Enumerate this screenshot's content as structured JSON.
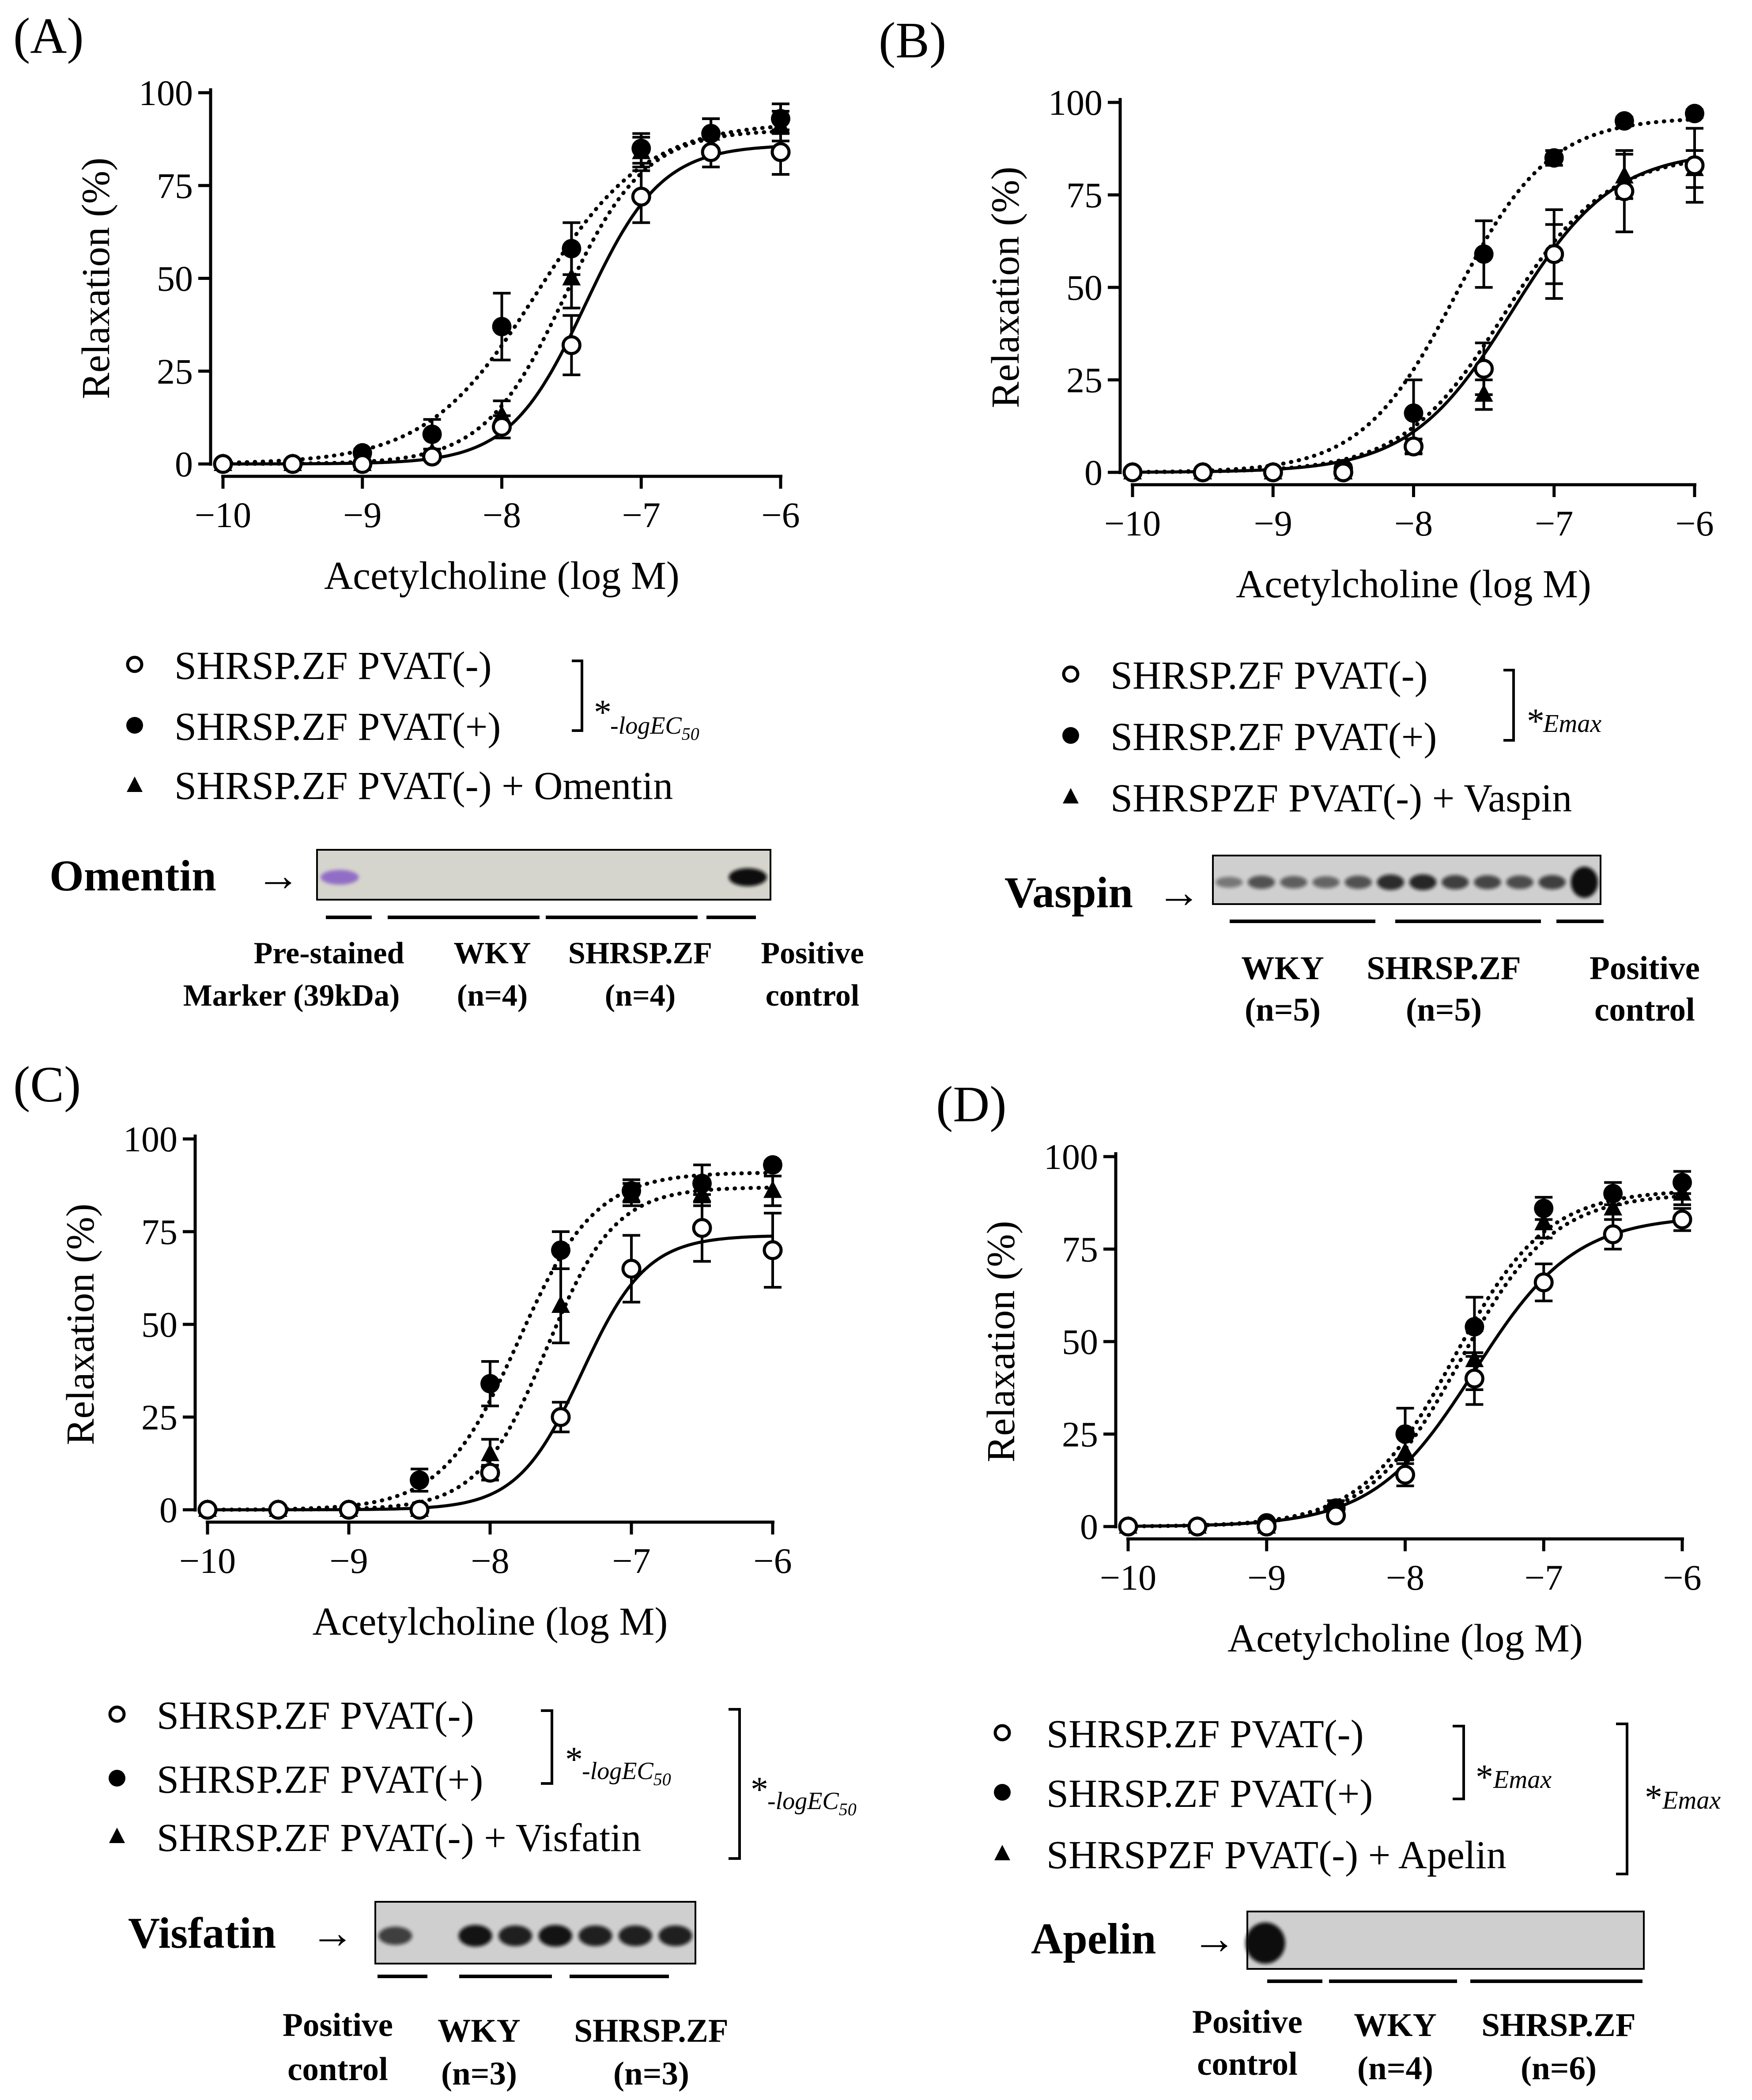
{
  "chart_data": [
    {
      "panel_label": "(A)",
      "type": "line",
      "xlabel": "Acetylcholine (log M)",
      "ylabel": "Relaxation (%)",
      "xlim": [
        -10,
        -6
      ],
      "ylim": [
        0,
        100
      ],
      "x_ticks": [
        -10,
        -9,
        -8,
        -7,
        -6
      ],
      "y_ticks": [
        0,
        25,
        50,
        75,
        100
      ],
      "x": [
        -10,
        -9.5,
        -9,
        -8.5,
        -8,
        -7.5,
        -7,
        -6.5,
        -6
      ],
      "series": [
        {
          "name": "SHRSP.ZF PVAT(-)",
          "marker": "open-circle",
          "line": "solid",
          "values": [
            0,
            0,
            0,
            2,
            10,
            32,
            72,
            84,
            84
          ],
          "errors": [
            0,
            0,
            0,
            1,
            3,
            8,
            7,
            4,
            6
          ],
          "fit": {
            "bottom": 0,
            "top": 86,
            "logEC50": -7.4,
            "hill": 1.6
          }
        },
        {
          "name": "SHRSP.ZF PVAT(+)",
          "marker": "filled-circle",
          "line": "dotted",
          "values": [
            0,
            0,
            3,
            8,
            37,
            58,
            85,
            89,
            93
          ],
          "errors": [
            0,
            0,
            1,
            4,
            9,
            7,
            4,
            4,
            4
          ],
          "fit": {
            "bottom": 0,
            "top": 92,
            "logEC50": -7.75,
            "hill": 1.1
          }
        },
        {
          "name": "SHRSP.ZF PVAT(-) + Omentin",
          "marker": "filled-triangle",
          "line": "dotted",
          "values": [
            0,
            0,
            0,
            3,
            13,
            50,
            84,
            89,
            91
          ],
          "errors": [
            0,
            0,
            0,
            1,
            4,
            8,
            4,
            4,
            4
          ],
          "fit": {
            "bottom": 0,
            "top": 90,
            "logEC50": -7.55,
            "hill": 1.5
          }
        }
      ],
      "legend": {
        "items": [
          "SHRSP.ZF PVAT(-)",
          "SHRSP.ZF PVAT(+)",
          "SHRSP.ZF PVAT(-) + Omentin"
        ],
        "brackets": [
          {
            "symbol": "*",
            "subscript": "-logEC",
            "subscript2": "50"
          }
        ]
      },
      "blot": {
        "label": "Omentin",
        "arrow": "→",
        "lanes": [
          {
            "label1": "Pre-stained",
            "label2": "Marker (39kDa)"
          },
          {
            "label1": "WKY",
            "label2": "(n=4)"
          },
          {
            "label1": "SHRSP.ZF",
            "label2": "(n=4)"
          },
          {
            "label1": "Positive",
            "label2": "control"
          }
        ],
        "band_intensities": [
          0.6,
          0,
          0,
          0,
          0,
          0,
          0,
          0,
          0,
          1.0
        ]
      }
    },
    {
      "panel_label": "(B)",
      "type": "line",
      "xlabel": "Acetylcholine (log M)",
      "ylabel": "Relaxation (%)",
      "xlim": [
        -10,
        -6
      ],
      "ylim": [
        0,
        100
      ],
      "x_ticks": [
        -10,
        -9,
        -8,
        -7,
        -6
      ],
      "y_ticks": [
        0,
        25,
        50,
        75,
        100
      ],
      "x": [
        -10,
        -9.5,
        -9,
        -8.5,
        -8,
        -7.5,
        -7,
        -6.5,
        -6
      ],
      "series": [
        {
          "name": "SHRSP.ZF PVAT(-)",
          "marker": "open-circle",
          "line": "solid",
          "values": [
            0,
            0,
            0,
            0,
            7,
            28,
            59,
            76,
            83
          ],
          "errors": [
            0,
            0,
            0,
            0,
            2,
            7,
            12,
            11,
            10
          ],
          "fit": {
            "bottom": 0,
            "top": 87,
            "logEC50": -7.3,
            "hill": 1.2
          }
        },
        {
          "name": "SHRSP.ZF PVAT(+)",
          "marker": "filled-circle",
          "line": "dotted",
          "values": [
            0,
            0,
            0,
            1,
            16,
            59,
            85,
            95,
            97
          ],
          "errors": [
            0,
            0,
            0,
            1,
            9,
            9,
            2,
            1,
            1
          ],
          "fit": {
            "bottom": 0,
            "top": 96,
            "logEC50": -7.7,
            "hill": 1.3
          }
        },
        {
          "name": "SHRSPZF PVAT(-) + Vaspin",
          "marker": "filled-triangle",
          "line": "dotted",
          "values": [
            0,
            0,
            0,
            0,
            7,
            21,
            59,
            80,
            82
          ],
          "errors": [
            0,
            0,
            0,
            0,
            2,
            4,
            8,
            6,
            5
          ],
          "fit": {
            "bottom": 0,
            "top": 86,
            "logEC50": -7.35,
            "hill": 1.2
          }
        }
      ],
      "legend": {
        "items": [
          "SHRSP.ZF PVAT(-)",
          "SHRSP.ZF PVAT(+)",
          "SHRSPZF PVAT(-) + Vaspin"
        ],
        "brackets": [
          {
            "symbol": "*",
            "subscript": "Emax",
            "subscript2": ""
          }
        ]
      },
      "blot": {
        "label": "Vaspin",
        "arrow": "→",
        "lanes": [
          {
            "label1": "WKY",
            "label2": "(n=5)"
          },
          {
            "label1": "SHRSP.ZF",
            "label2": "(n=5)"
          },
          {
            "label1": "Positive",
            "label2": "control"
          }
        ],
        "band_intensities": [
          0.15,
          0.45,
          0.35,
          0.3,
          0.45,
          0.75,
          0.8,
          0.6,
          0.55,
          0.5,
          0.6,
          1.0
        ]
      }
    },
    {
      "panel_label": "(C)",
      "type": "line",
      "xlabel": "Acetylcholine (log M)",
      "ylabel": "Relaxation (%)",
      "xlim": [
        -10,
        -6
      ],
      "ylim": [
        0,
        100
      ],
      "x_ticks": [
        -10,
        -9,
        -8,
        -7,
        -6
      ],
      "y_ticks": [
        0,
        25,
        50,
        75,
        100
      ],
      "x": [
        -10,
        -9.5,
        -9,
        -8.5,
        -8,
        -7.5,
        -7,
        -6.5,
        -6
      ],
      "series": [
        {
          "name": "SHRSP.ZF PVAT(-)",
          "marker": "open-circle",
          "line": "solid",
          "values": [
            0,
            0,
            0,
            0,
            10,
            25,
            65,
            76,
            70
          ],
          "errors": [
            0,
            0,
            0,
            0,
            2,
            4,
            9,
            9,
            10
          ],
          "fit": {
            "bottom": 0,
            "top": 74,
            "logEC50": -7.35,
            "hill": 1.9
          }
        },
        {
          "name": "SHRSP.ZF PVAT(+)",
          "marker": "filled-circle",
          "line": "dotted",
          "values": [
            0,
            0,
            0,
            8,
            34,
            70,
            86,
            88,
            93
          ],
          "errors": [
            0,
            0,
            0,
            3,
            6,
            5,
            3,
            5,
            1
          ],
          "fit": {
            "bottom": 0,
            "top": 91,
            "logEC50": -7.8,
            "hill": 1.6
          }
        },
        {
          "name": "SHRSP.ZF PVAT(-) + Visfatin",
          "marker": "filled-triangle",
          "line": "dotted",
          "values": [
            0,
            0,
            0,
            0,
            15,
            55,
            85,
            85,
            86
          ],
          "errors": [
            0,
            0,
            0,
            0,
            4,
            10,
            3,
            3,
            4
          ],
          "fit": {
            "bottom": 0,
            "top": 87,
            "logEC50": -7.6,
            "hill": 1.8
          }
        }
      ],
      "legend": {
        "items": [
          "SHRSP.ZF PVAT(-)",
          "SHRSP.ZF PVAT(+)",
          "SHRSP.ZF PVAT(-) + Visfatin"
        ],
        "brackets": [
          {
            "symbol": "*",
            "subscript": "-logEC",
            "subscript2": "50"
          },
          {
            "symbol": "*",
            "subscript": "-logEC",
            "subscript2": "50"
          }
        ]
      },
      "blot": {
        "label": "Visfatin",
        "arrow": "→",
        "lanes": [
          {
            "label1": "Positive",
            "label2": "control"
          },
          {
            "label1": "WKY",
            "label2": "(n=3)"
          },
          {
            "label1": "SHRSP.ZF",
            "label2": "(n=3)"
          }
        ],
        "band_intensities": [
          0.6,
          0,
          0.95,
          0.85,
          0.95,
          0.85,
          0.85,
          0.85
        ]
      }
    },
    {
      "panel_label": "(D)",
      "type": "line",
      "xlabel": "Acetylcholine (log M)",
      "ylabel": "Relaxation (%)",
      "xlim": [
        -10,
        -6
      ],
      "ylim": [
        0,
        100
      ],
      "x_ticks": [
        -10,
        -9,
        -8,
        -7,
        -6
      ],
      "y_ticks": [
        0,
        25,
        50,
        75,
        100
      ],
      "x": [
        -10,
        -9.5,
        -9,
        -8.5,
        -8,
        -7.5,
        -7,
        -6.5,
        -6
      ],
      "series": [
        {
          "name": "SHRSP.ZF PVAT(-)",
          "marker": "open-circle",
          "line": "solid",
          "values": [
            0,
            0,
            0,
            3,
            14,
            40,
            66,
            79,
            83
          ],
          "errors": [
            0,
            0,
            0,
            1,
            3,
            7,
            5,
            4,
            3
          ],
          "fit": {
            "bottom": 0,
            "top": 84,
            "logEC50": -7.5,
            "hill": 1.2
          }
        },
        {
          "name": "SHRSP.ZF PVAT(+)",
          "marker": "filled-circle",
          "line": "dotted",
          "values": [
            0,
            0,
            1,
            5,
            25,
            54,
            86,
            90,
            93
          ],
          "errors": [
            0,
            0,
            0,
            2,
            7,
            8,
            3,
            3,
            3
          ],
          "fit": {
            "bottom": 0,
            "top": 91,
            "logEC50": -7.65,
            "hill": 1.3
          }
        },
        {
          "name": "SHRSPZF PVAT(-) + Apelin",
          "marker": "filled-triangle",
          "line": "dotted",
          "values": [
            0,
            0,
            0,
            4,
            20,
            45,
            82,
            86,
            90
          ],
          "errors": [
            0,
            0,
            0,
            1,
            5,
            8,
            4,
            3,
            3
          ],
          "fit": {
            "bottom": 0,
            "top": 90,
            "logEC50": -7.6,
            "hill": 1.3
          }
        }
      ],
      "legend": {
        "items": [
          "SHRSP.ZF PVAT(-)",
          "SHRSP.ZF PVAT(+)",
          "SHRSPZF PVAT(-) + Apelin"
        ],
        "brackets": [
          {
            "symbol": "*",
            "subscript": "Emax",
            "subscript2": ""
          },
          {
            "symbol": "*",
            "subscript": "Emax",
            "subscript2": ""
          }
        ]
      },
      "blot": {
        "label": "Apelin",
        "arrow": "→",
        "lanes": [
          {
            "label1": "Positive",
            "label2": "control"
          },
          {
            "label1": "WKY",
            "label2": "(n=4)"
          },
          {
            "label1": "SHRSP.ZF",
            "label2": "(n=6)"
          }
        ],
        "band_intensities": [
          1.0,
          0,
          0,
          0,
          0,
          0,
          0,
          0,
          0,
          0,
          0
        ]
      }
    }
  ]
}
